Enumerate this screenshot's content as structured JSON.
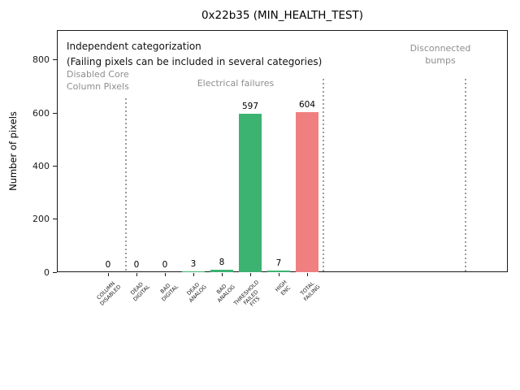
{
  "chart_data": {
    "type": "bar",
    "title": "0x22b35 (MIN_HEALTH_TEST)",
    "xlabel": "",
    "ylabel": "Number of pixels",
    "ylim": [
      0,
      913
    ],
    "yticks": [
      0,
      200,
      400,
      600,
      800
    ],
    "grid": false,
    "legend": null,
    "categories": [
      "COLUMN DISABLED",
      "DEAD DIGITAL",
      "BAD DIGITAL",
      "DEAD ANALOG",
      "BAD ANALOG",
      "THRESHOLD FAILED FITS",
      "HIGH ENC",
      "TOTAL FAILING"
    ],
    "category_label_lines": [
      [
        "COLUMN",
        "DISABLED"
      ],
      [
        "DEAD",
        "DIGITAL"
      ],
      [
        "BAD",
        "DIGITAL"
      ],
      [
        "DEAD",
        "ANALOG"
      ],
      [
        "BAD",
        "ANALOG"
      ],
      [
        "THRESHOLD",
        "FAILED",
        "FITS"
      ],
      [
        "HIGH",
        "ENC"
      ],
      [
        "TOTAL",
        "FAILING"
      ]
    ],
    "values": [
      0,
      0,
      0,
      3,
      8,
      597,
      7,
      604
    ],
    "value_labels": [
      "0",
      "0",
      "0",
      "3",
      "8",
      "597",
      "7",
      "604"
    ],
    "bar_colors": [
      "#3cb371",
      "#3cb371",
      "#3cb371",
      "#3cb371",
      "#3cb371",
      "#3cb371",
      "#3cb371",
      "#f08080"
    ],
    "annotations": {
      "note_line1": "Independent categorization",
      "note_line2": "(Failing pixels can be included in several categories)",
      "regions": [
        {
          "label_lines": [
            "Disabled Core",
            "Column Pixels"
          ]
        },
        {
          "label_lines": [
            "Electrical failures"
          ]
        },
        {
          "label_lines": [
            "Disconnected",
            "bumps"
          ]
        }
      ]
    },
    "separator_style": {
      "line": "dotted",
      "color": "#9c9c9c"
    }
  },
  "colors": {
    "bar_green": "#3cb371",
    "bar_red": "#f08080",
    "region_label_grey": "#8e8e8e",
    "axis": "#1a1a1a",
    "background": "#ffffff"
  }
}
